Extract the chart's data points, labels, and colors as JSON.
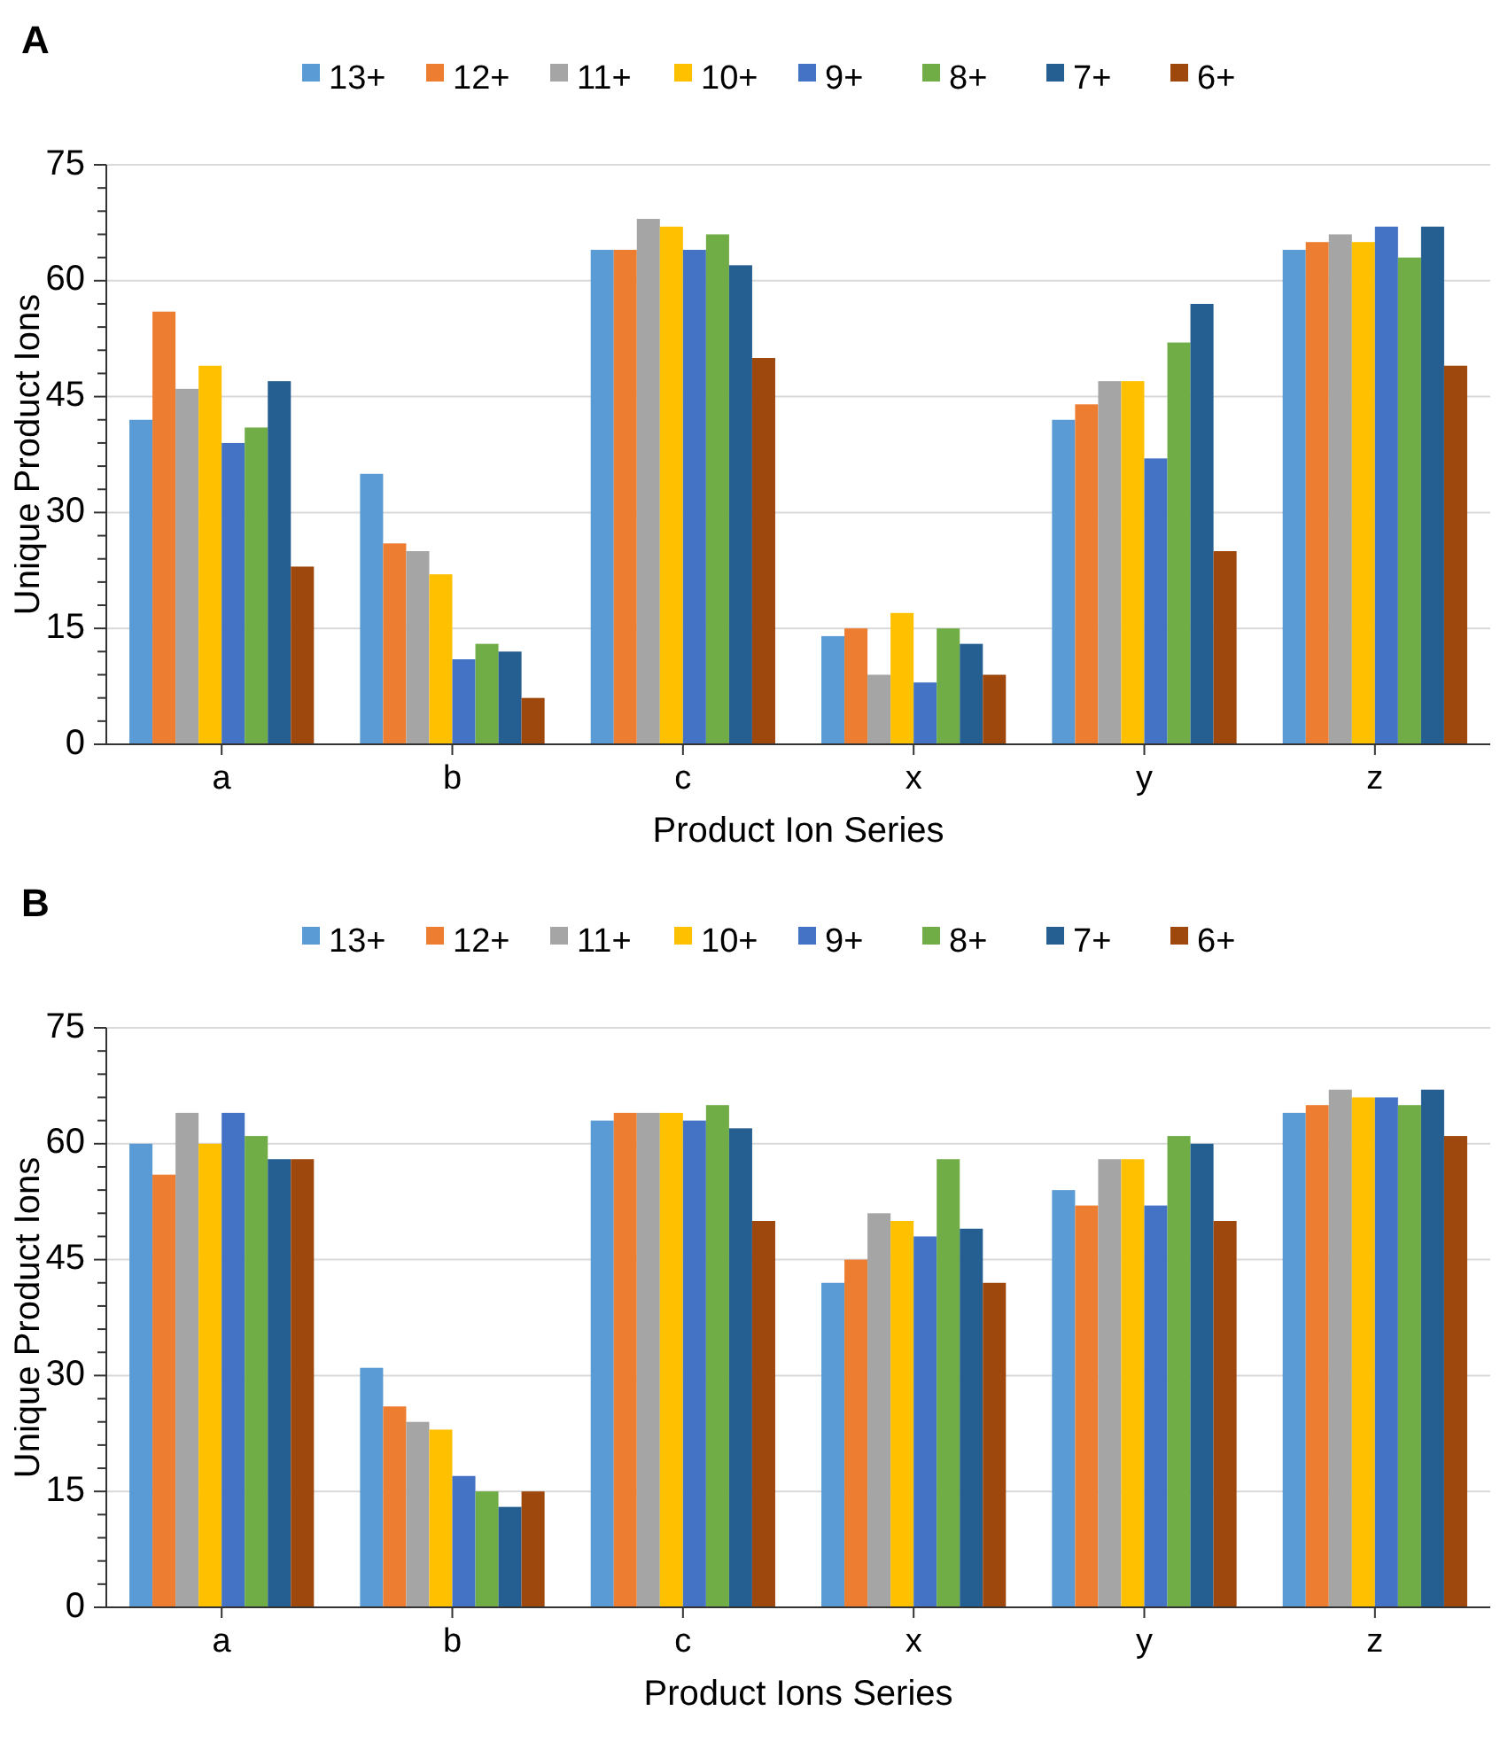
{
  "chart_data": [
    {
      "type": "bar",
      "title": "A",
      "xlabel": "Product Ion Series",
      "ylabel": "Unique Product Ions",
      "categories": [
        "a",
        "b",
        "c",
        "x",
        "y",
        "z"
      ],
      "ylim": [
        0,
        75
      ],
      "yticks": [
        0,
        {
          "value": 3,
          "label": null
        },
        {
          "value": 6,
          "label": null
        },
        {
          "value": 9,
          "label": null
        },
        {
          "value": 12,
          "label": null
        },
        15,
        {
          "value": 18,
          "label": null
        },
        {
          "value": 21,
          "label": null
        },
        {
          "value": 24,
          "label": null
        },
        {
          "value": 27,
          "label": null
        },
        30,
        {
          "value": 33,
          "label": null
        },
        {
          "value": 36,
          "label": null
        },
        {
          "value": 39,
          "label": null
        },
        {
          "value": 42,
          "label": null
        },
        45,
        {
          "value": 48,
          "label": null
        },
        {
          "value": 51,
          "label": null
        },
        {
          "value": 54,
          "label": null
        },
        {
          "value": 57,
          "label": null
        },
        60,
        {
          "value": 63,
          "label": null
        },
        {
          "value": 66,
          "label": null
        },
        {
          "value": 69,
          "label": null
        },
        {
          "value": 72,
          "label": null
        },
        75
      ],
      "grid": "y",
      "legend": "top",
      "series": [
        {
          "name": "13+",
          "color": "#5b9bd5",
          "values": [
            42,
            35,
            64,
            14,
            42,
            64
          ]
        },
        {
          "name": "12+",
          "color": "#ed7d31",
          "values": [
            56,
            26,
            64,
            15,
            44,
            65
          ]
        },
        {
          "name": "11+",
          "color": "#a5a5a5",
          "values": [
            46,
            25,
            68,
            9,
            47,
            66
          ]
        },
        {
          "name": "10+",
          "color": "#ffc000",
          "values": [
            49,
            22,
            67,
            17,
            47,
            65
          ]
        },
        {
          "name": "9+",
          "color": "#4472c4",
          "values": [
            39,
            11,
            64,
            8,
            37,
            67
          ]
        },
        {
          "name": "8+",
          "color": "#70ad47",
          "values": [
            41,
            13,
            66,
            15,
            52,
            63
          ]
        },
        {
          "name": "7+",
          "color": "#255e91",
          "values": [
            47,
            12,
            62,
            13,
            57,
            67
          ]
        },
        {
          "name": "6+",
          "color": "#9e480e",
          "values": [
            23,
            6,
            50,
            9,
            25,
            49
          ]
        }
      ]
    },
    {
      "type": "bar",
      "title": "B",
      "xlabel": "Product Ions Series",
      "ylabel": "Unique Product Ions",
      "categories": [
        "a",
        "b",
        "c",
        "x",
        "y",
        "z"
      ],
      "ylim": [
        0,
        75
      ],
      "yticks": [
        0,
        {
          "value": 3,
          "label": null
        },
        {
          "value": 6,
          "label": null
        },
        {
          "value": 9,
          "label": null
        },
        {
          "value": 12,
          "label": null
        },
        15,
        {
          "value": 18,
          "label": null
        },
        {
          "value": 21,
          "label": null
        },
        {
          "value": 24,
          "label": null
        },
        {
          "value": 27,
          "label": null
        },
        30,
        {
          "value": 33,
          "label": null
        },
        {
          "value": 36,
          "label": null
        },
        {
          "value": 39,
          "label": null
        },
        {
          "value": 42,
          "label": null
        },
        45,
        {
          "value": 48,
          "label": null
        },
        {
          "value": 51,
          "label": null
        },
        {
          "value": 54,
          "label": null
        },
        {
          "value": 57,
          "label": null
        },
        60,
        {
          "value": 63,
          "label": null
        },
        {
          "value": 66,
          "label": null
        },
        {
          "value": 69,
          "label": null
        },
        {
          "value": 72,
          "label": null
        },
        75
      ],
      "grid": "y",
      "legend": "top",
      "series": [
        {
          "name": "13+",
          "color": "#5b9bd5",
          "values": [
            60,
            31,
            63,
            42,
            54,
            64
          ]
        },
        {
          "name": "12+",
          "color": "#ed7d31",
          "values": [
            56,
            26,
            64,
            45,
            52,
            65
          ]
        },
        {
          "name": "11+",
          "color": "#a5a5a5",
          "values": [
            64,
            24,
            64,
            51,
            58,
            67
          ]
        },
        {
          "name": "10+",
          "color": "#ffc000",
          "values": [
            60,
            23,
            64,
            50,
            58,
            66
          ]
        },
        {
          "name": "9+",
          "color": "#4472c4",
          "values": [
            64,
            17,
            63,
            48,
            52,
            66
          ]
        },
        {
          "name": "8+",
          "color": "#70ad47",
          "values": [
            61,
            15,
            65,
            58,
            61,
            65
          ]
        },
        {
          "name": "7+",
          "color": "#255e91",
          "values": [
            58,
            13,
            62,
            49,
            60,
            67
          ]
        },
        {
          "name": "6+",
          "color": "#9e480e",
          "values": [
            58,
            15,
            50,
            42,
            50,
            61
          ]
        }
      ]
    }
  ]
}
